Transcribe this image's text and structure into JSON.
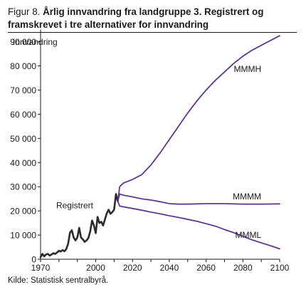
{
  "figure": {
    "prefix": "Figur 8.",
    "title_line1": "Årlig innvandring fra landgruppe 3. Registrert og",
    "title_line2": "framskrevet i tre alternativer for innvandring",
    "source": "Kilde: Statistisk sentralbyrå."
  },
  "chart_data": {
    "type": "line",
    "title": "Årlig innvandring fra landgruppe 3. Registrert og framskrevet i tre alternativer for innvandring",
    "ylabel": "Innvandring",
    "xlabel": "",
    "xlim": [
      1970,
      2100
    ],
    "ylim": [
      0,
      95000
    ],
    "x_ticks": [
      1970,
      1980,
      1990,
      2000,
      2010,
      2020,
      2030,
      2040,
      2050,
      2060,
      2070,
      2080,
      2090,
      2100
    ],
    "x_tick_labels": [
      "1970",
      "",
      "",
      "2000",
      "",
      "2020",
      "",
      "2040",
      "",
      "2060",
      "",
      "2080",
      "",
      "2100"
    ],
    "y_ticks": [
      0,
      10000,
      20000,
      30000,
      40000,
      50000,
      60000,
      70000,
      80000,
      90000
    ],
    "y_tick_labels": [
      "0",
      "10 000",
      "20 000",
      "30 000",
      "40 000",
      "50 000",
      "60 000",
      "70 000",
      "80 000",
      "90 000"
    ],
    "grid": false,
    "colors": {
      "registered": "#2b2b2b",
      "projection": "#5a2a96",
      "axis": "#1a1a1a"
    },
    "series": [
      {
        "name": "Registrert",
        "x": [
          1970,
          1971,
          1972,
          1973,
          1974,
          1975,
          1976,
          1977,
          1978,
          1979,
          1980,
          1981,
          1982,
          1983,
          1984,
          1985,
          1986,
          1987,
          1988,
          1989,
          1990,
          1991,
          1992,
          1993,
          1994,
          1995,
          1996,
          1997,
          1998,
          1999,
          2000,
          2001,
          2002,
          2003,
          2004,
          2005,
          2006,
          2007,
          2008,
          2009,
          2010,
          2011,
          2012
        ],
        "values": [
          800,
          2200,
          1200,
          2000,
          2200,
          1500,
          2000,
          2500,
          2200,
          2800,
          3500,
          3200,
          3800,
          3300,
          4200,
          6500,
          11000,
          12000,
          9000,
          7800,
          9000,
          13000,
          9000,
          8200,
          7200,
          7800,
          8800,
          11500,
          16000,
          14000,
          10800,
          17500,
          15000,
          15500,
          14000,
          16500,
          19000,
          20500,
          18800,
          19500,
          20500,
          27000,
          24000
        ]
      },
      {
        "name": "MMMH",
        "x": [
          2012,
          2013,
          2015,
          2020,
          2025,
          2030,
          2035,
          2040,
          2045,
          2050,
          2055,
          2060,
          2065,
          2070,
          2075,
          2080,
          2085,
          2090,
          2095,
          2100
        ],
        "values": [
          24000,
          30000,
          31500,
          33000,
          35000,
          39000,
          44000,
          49500,
          55000,
          60500,
          65500,
          70000,
          74000,
          77500,
          81000,
          84000,
          86500,
          88500,
          90500,
          92500
        ]
      },
      {
        "name": "MMMM",
        "x": [
          2012,
          2013,
          2015,
          2020,
          2025,
          2030,
          2035,
          2040,
          2045,
          2050,
          2060,
          2070,
          2080,
          2090,
          2100
        ],
        "values": [
          24000,
          27000,
          26500,
          25800,
          25000,
          24500,
          23800,
          23000,
          22800,
          22800,
          23000,
          23000,
          22800,
          22800,
          22900
        ]
      },
      {
        "name": "MMML",
        "x": [
          2012,
          2013,
          2015,
          2020,
          2025,
          2030,
          2035,
          2040,
          2045,
          2050,
          2055,
          2060,
          2065,
          2070,
          2075,
          2080,
          2085,
          2090,
          2095,
          2100
        ],
        "values": [
          24000,
          22000,
          21700,
          21000,
          20300,
          19500,
          18800,
          18000,
          17300,
          16500,
          15700,
          14700,
          13700,
          12300,
          11000,
          9500,
          8000,
          6800,
          5600,
          4300
        ]
      }
    ],
    "annotations": [
      {
        "text": "Registrert",
        "series": "Registrert"
      },
      {
        "text": "MMMH",
        "series": "MMMH"
      },
      {
        "text": "MMMM",
        "series": "MMMM"
      },
      {
        "text": "MMML",
        "series": "MMML"
      }
    ]
  }
}
